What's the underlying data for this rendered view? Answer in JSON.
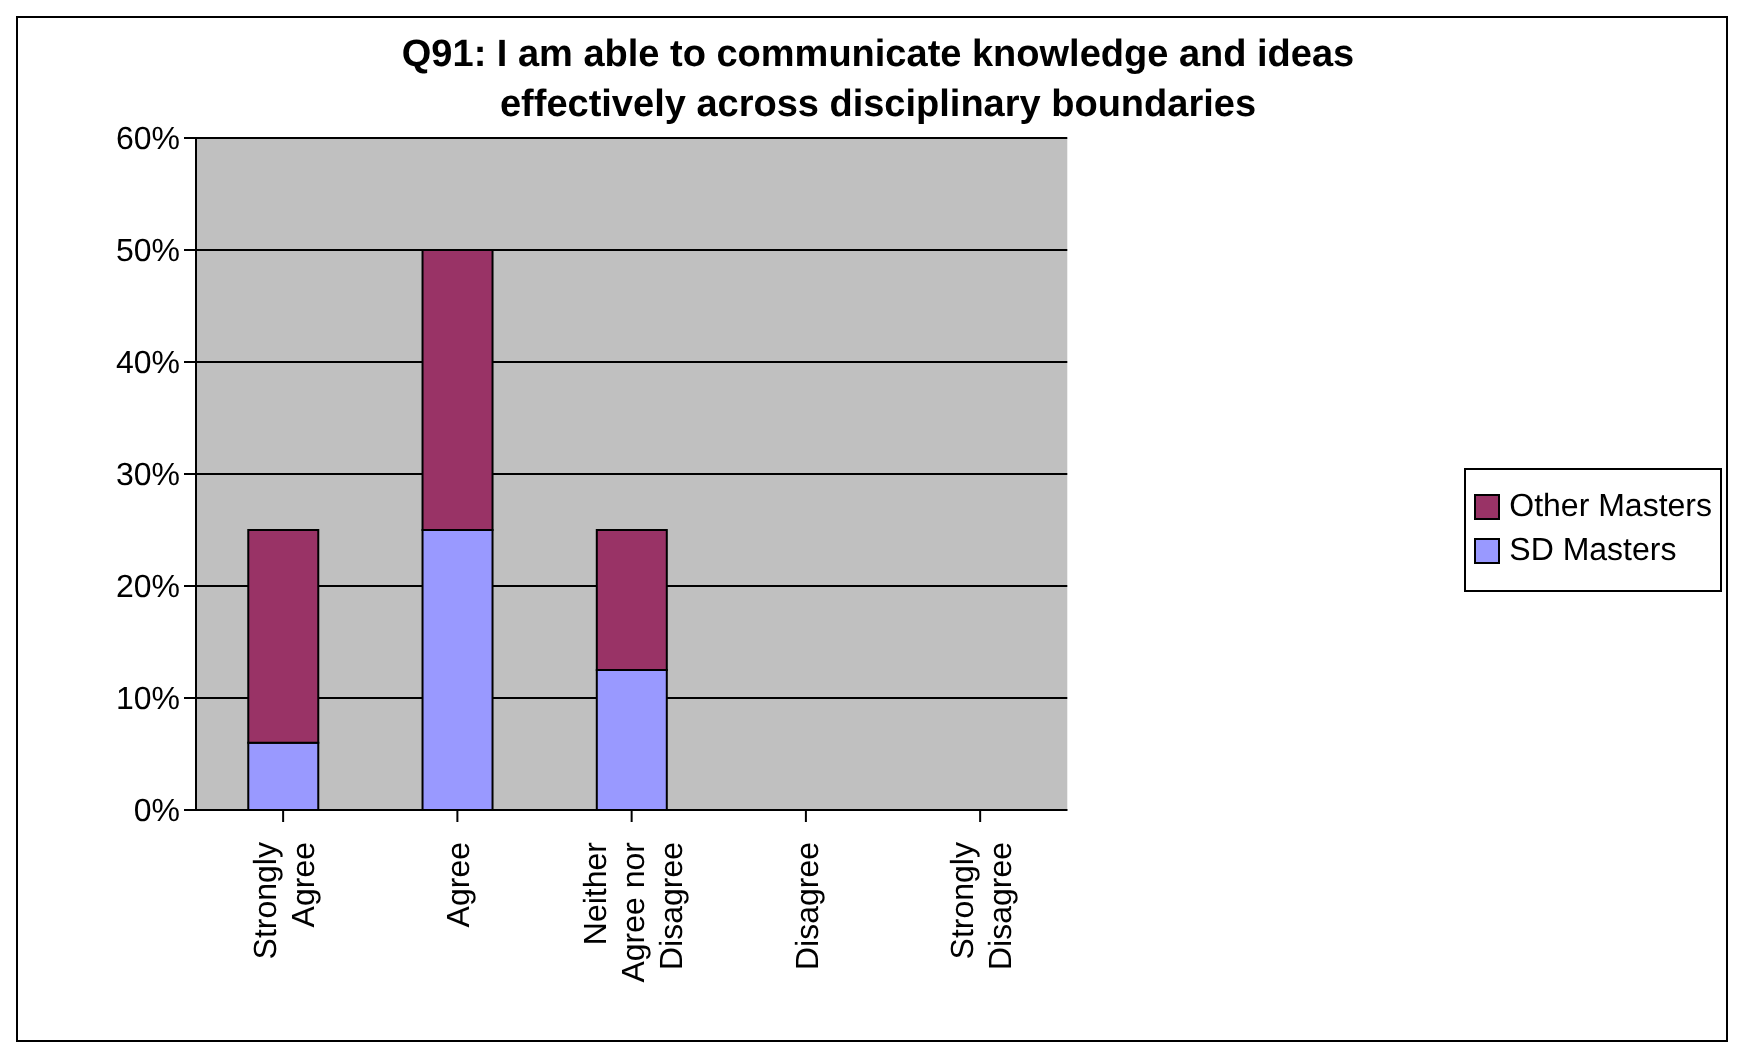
{
  "chart_data": {
    "type": "bar",
    "title": "Q91: I am able to communicate knowledge and ideas effectively across disciplinary boundaries",
    "categories": [
      "Strongly Agree",
      "Agree",
      "Neither Agree nor Disagree",
      "Disagree",
      "Strongly Disagree"
    ],
    "series": [
      {
        "name": "SD Masters",
        "color": "#9999ff",
        "values": [
          6,
          25,
          12.5,
          0,
          0
        ]
      },
      {
        "name": "Other Masters",
        "color": "#993366",
        "values": [
          19,
          25,
          12.5,
          0,
          0
        ]
      }
    ],
    "stacked": true,
    "ylim": [
      0,
      60
    ],
    "yticks": [
      {
        "value": 0,
        "label": "0%"
      },
      {
        "value": 10,
        "label": "10%"
      },
      {
        "value": 20,
        "label": "20%"
      },
      {
        "value": 30,
        "label": "30%"
      },
      {
        "value": 40,
        "label": "40%"
      },
      {
        "value": 50,
        "label": "50%"
      },
      {
        "value": 60,
        "label": "60%"
      }
    ],
    "grid": "y",
    "legend": "right"
  }
}
